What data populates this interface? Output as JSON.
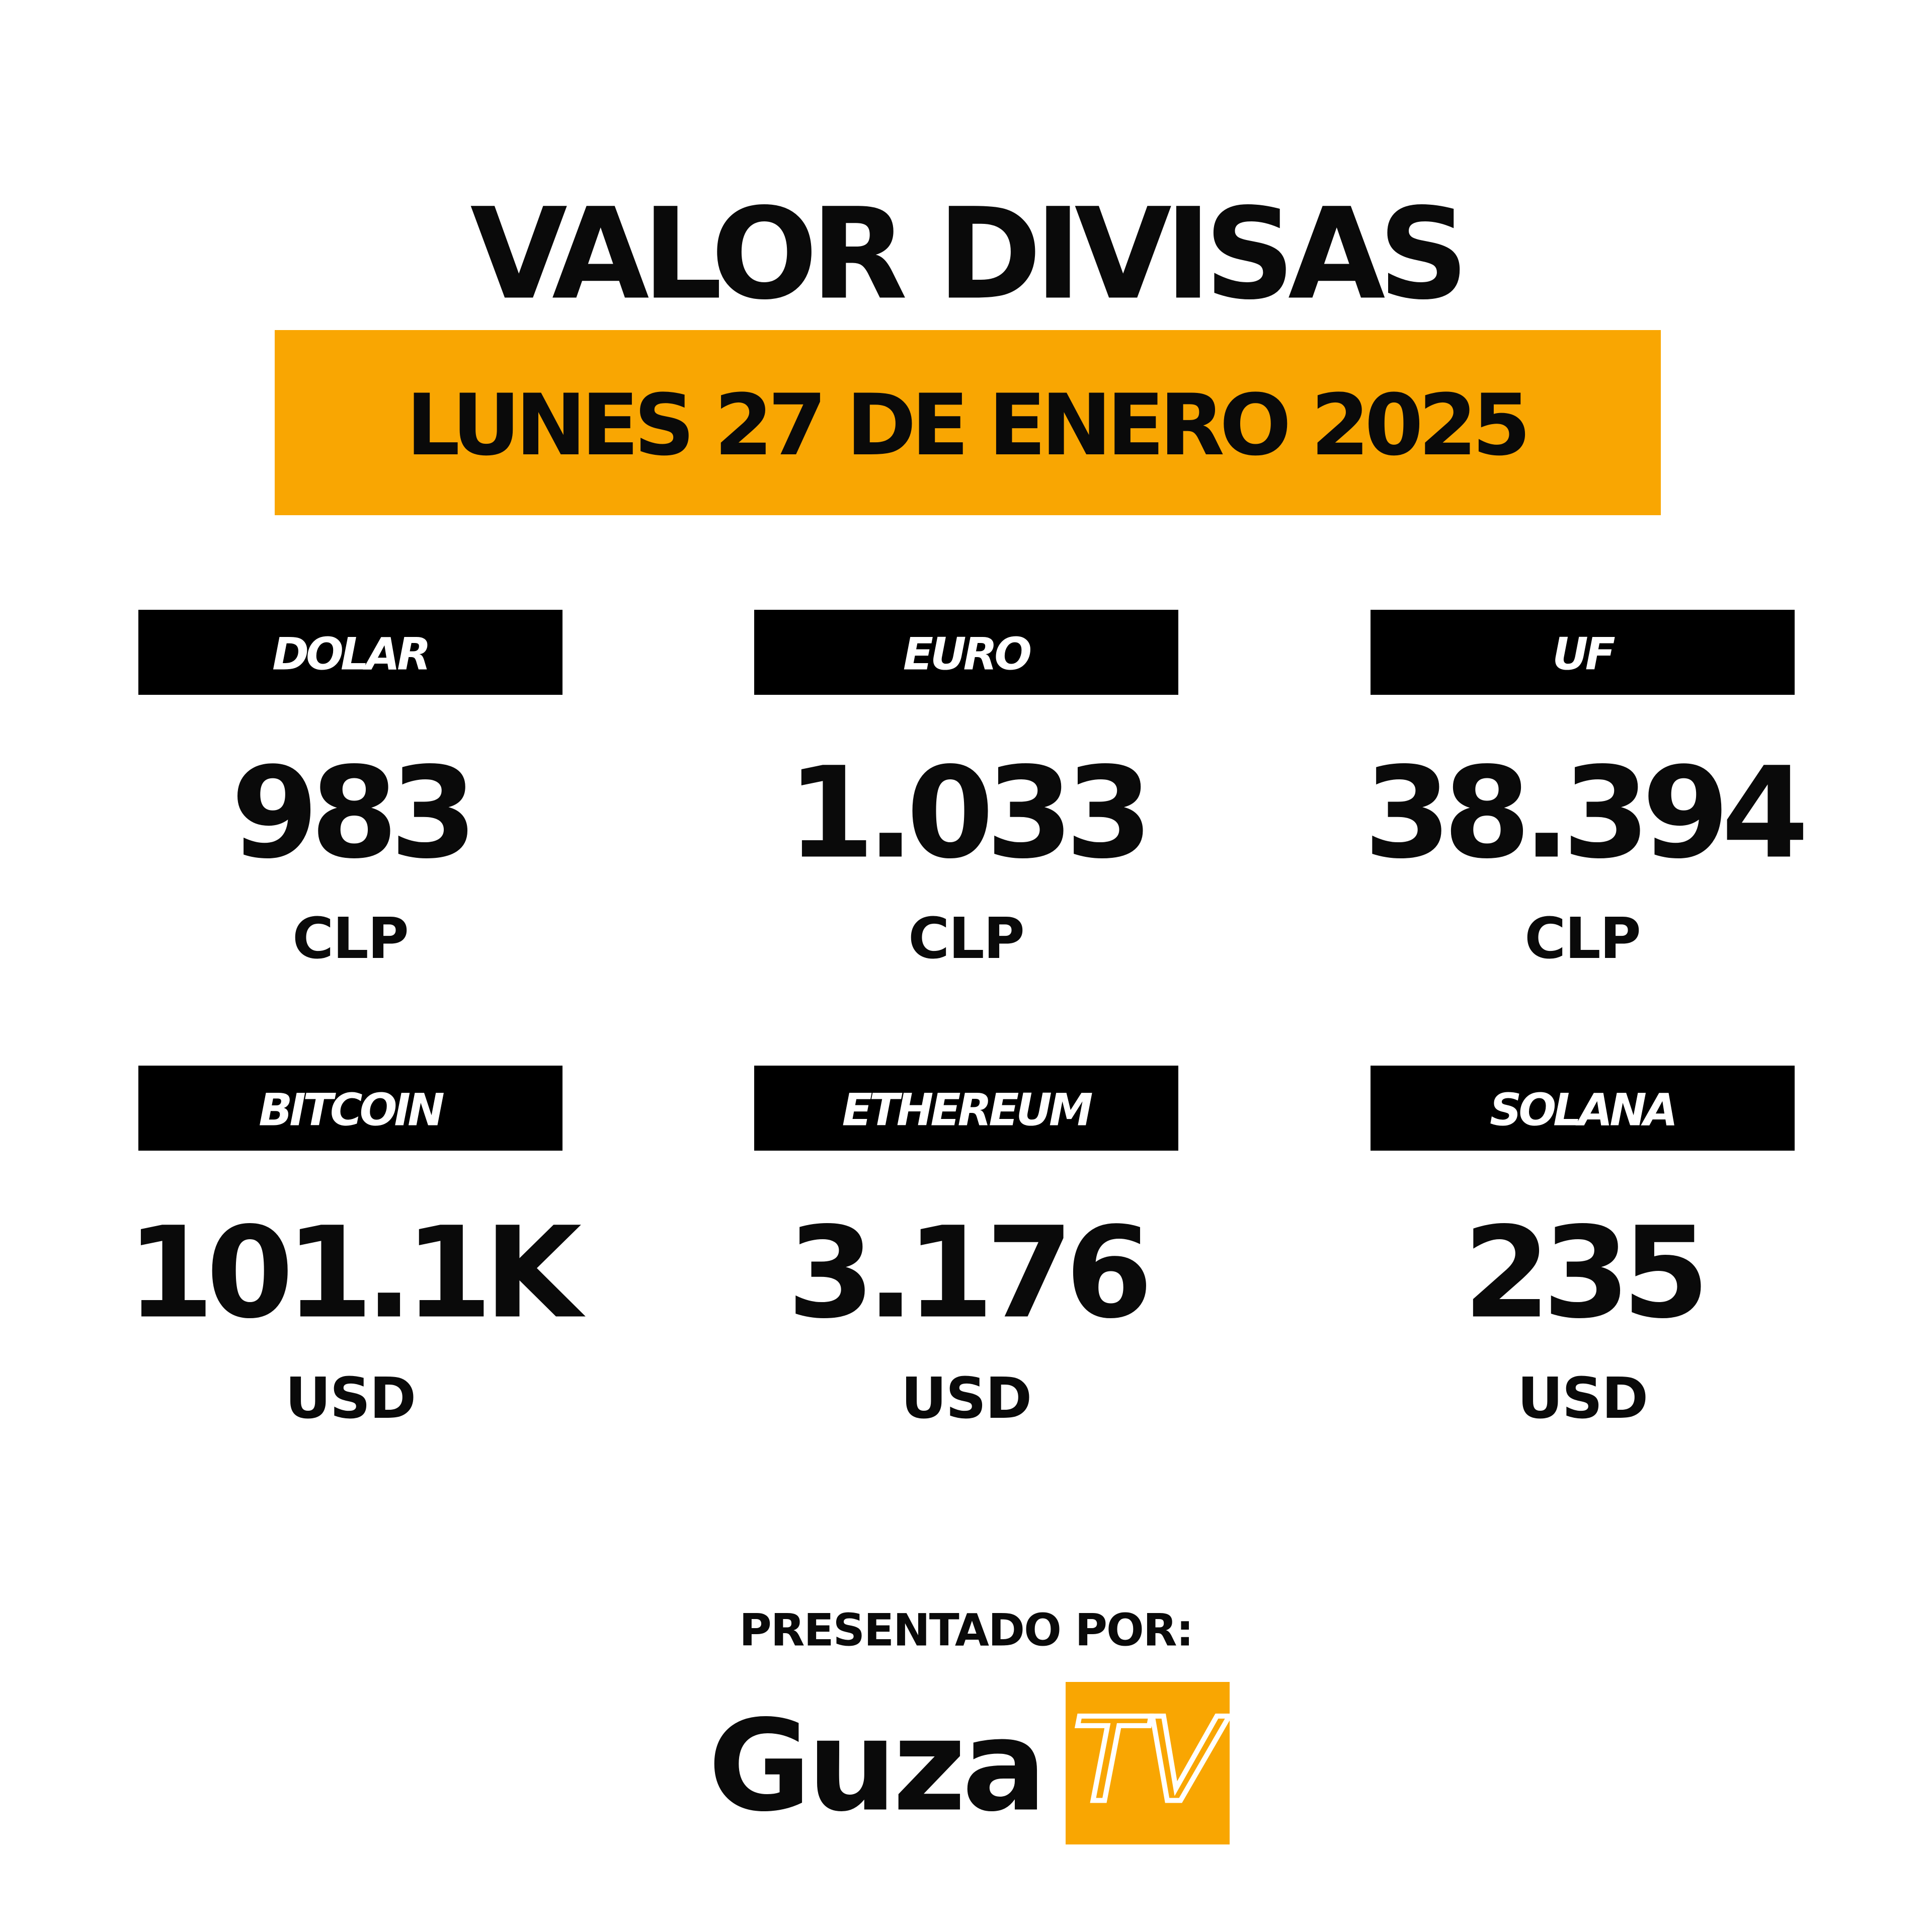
{
  "header": {
    "title": "VALOR DIVISAS",
    "date": "LUNES 27 DE ENERO 2025"
  },
  "cards": [
    {
      "label": "DOLAR",
      "value": "983",
      "unit": "CLP"
    },
    {
      "label": "EURO",
      "value": "1.033",
      "unit": "CLP"
    },
    {
      "label": "UF",
      "value": "38.394",
      "unit": "CLP"
    },
    {
      "label": "BITCOIN",
      "value": "101.1K",
      "unit": "USD"
    },
    {
      "label": "ETHEREUM",
      "value": "3.176",
      "unit": "USD"
    },
    {
      "label": "SOLANA",
      "value": "235",
      "unit": "USD"
    }
  ],
  "footer": {
    "presented_by": "PRESENTADO POR:",
    "brand": "Guza",
    "brand_tv": "TV"
  }
}
